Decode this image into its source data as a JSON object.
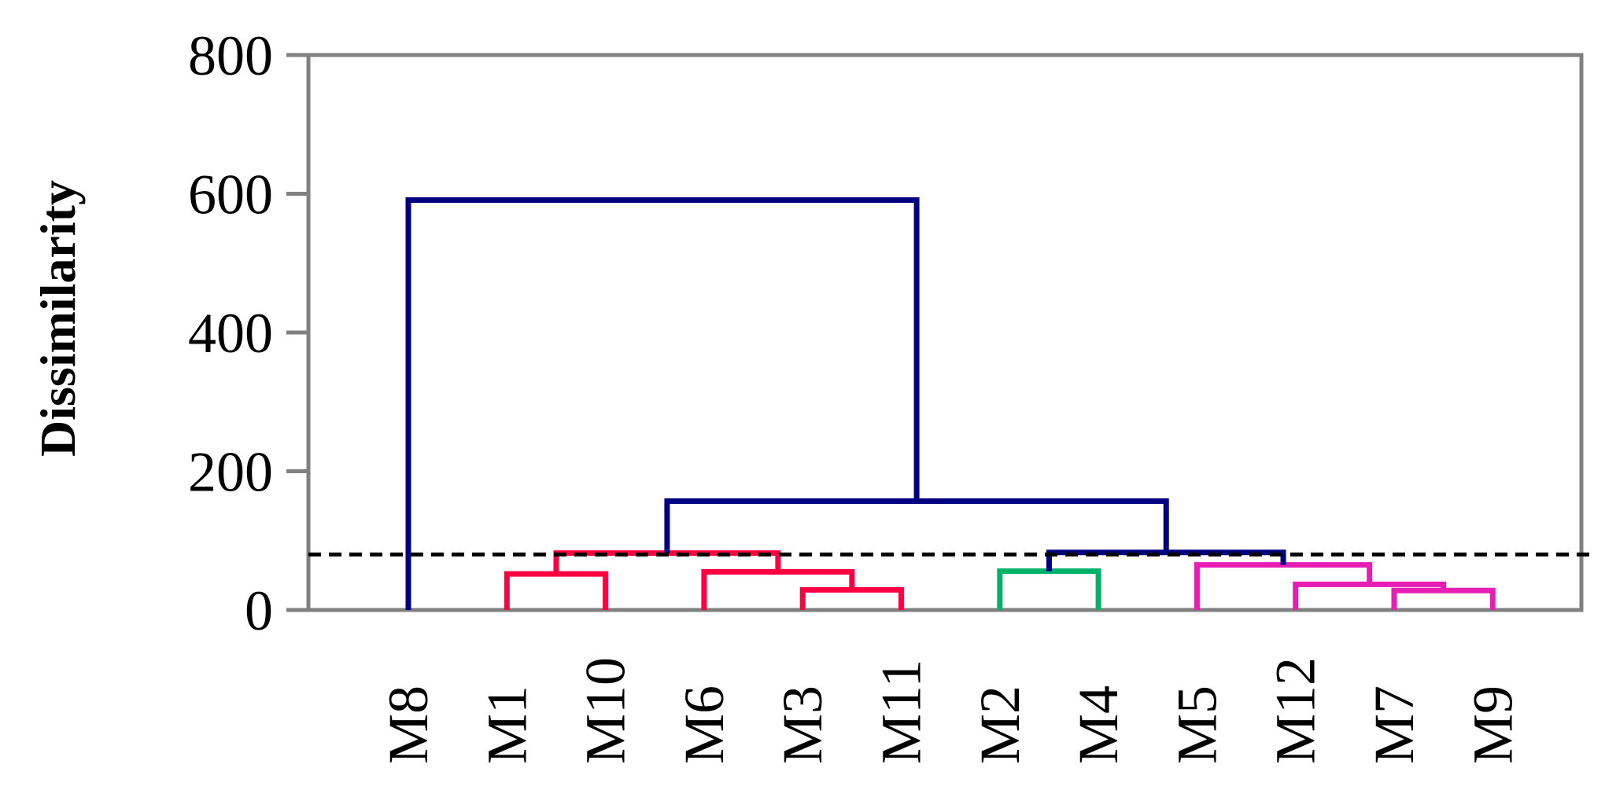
{
  "chart_data": {
    "type": "dendrogram",
    "title": "",
    "xlabel": "",
    "ylabel": "Dissimilarity",
    "ylim": [
      0,
      800
    ],
    "yticks": [
      0,
      200,
      400,
      600,
      800
    ],
    "grid": false,
    "leaves": [
      "M8",
      "M1",
      "M10",
      "M6",
      "M3",
      "M11",
      "M2",
      "M4",
      "M5",
      "M12",
      "M7",
      "M9"
    ],
    "cut_height": 80,
    "merges": [
      {
        "id": "A",
        "children": [
          "M1",
          "M10"
        ],
        "height": 52,
        "color": "#ff0040"
      },
      {
        "id": "B",
        "children": [
          "M3",
          "M11"
        ],
        "height": 29,
        "color": "#ff0040"
      },
      {
        "id": "C",
        "children": [
          "M6",
          "B"
        ],
        "height": 55,
        "color": "#ff0040"
      },
      {
        "id": "D",
        "children": [
          "A",
          "C"
        ],
        "height": 82,
        "color": "#ff0040"
      },
      {
        "id": "E",
        "children": [
          "M2",
          "M4"
        ],
        "height": 56,
        "color": "#00b26a"
      },
      {
        "id": "F",
        "children": [
          "M7",
          "M9"
        ],
        "height": 28,
        "color": "#e61eb4"
      },
      {
        "id": "G",
        "children": [
          "M12",
          "F"
        ],
        "height": 37,
        "color": "#e61eb4"
      },
      {
        "id": "H",
        "children": [
          "M5",
          "G"
        ],
        "height": 65,
        "color": "#e61eb4"
      },
      {
        "id": "I",
        "children": [
          "E",
          "H"
        ],
        "height": 83,
        "color": "#000080"
      },
      {
        "id": "J",
        "children": [
          "D",
          "I"
        ],
        "height": 157,
        "color": "#000080"
      },
      {
        "id": "K",
        "children": [
          "M8",
          "J"
        ],
        "height": 591,
        "color": "#000080"
      }
    ],
    "colors": {
      "tree_main": "#000080",
      "cluster_red": "#ff0040",
      "cluster_green": "#00b26a",
      "cluster_magenta": "#e61eb4",
      "axis": "#808080",
      "cut_line": "#000000"
    }
  }
}
